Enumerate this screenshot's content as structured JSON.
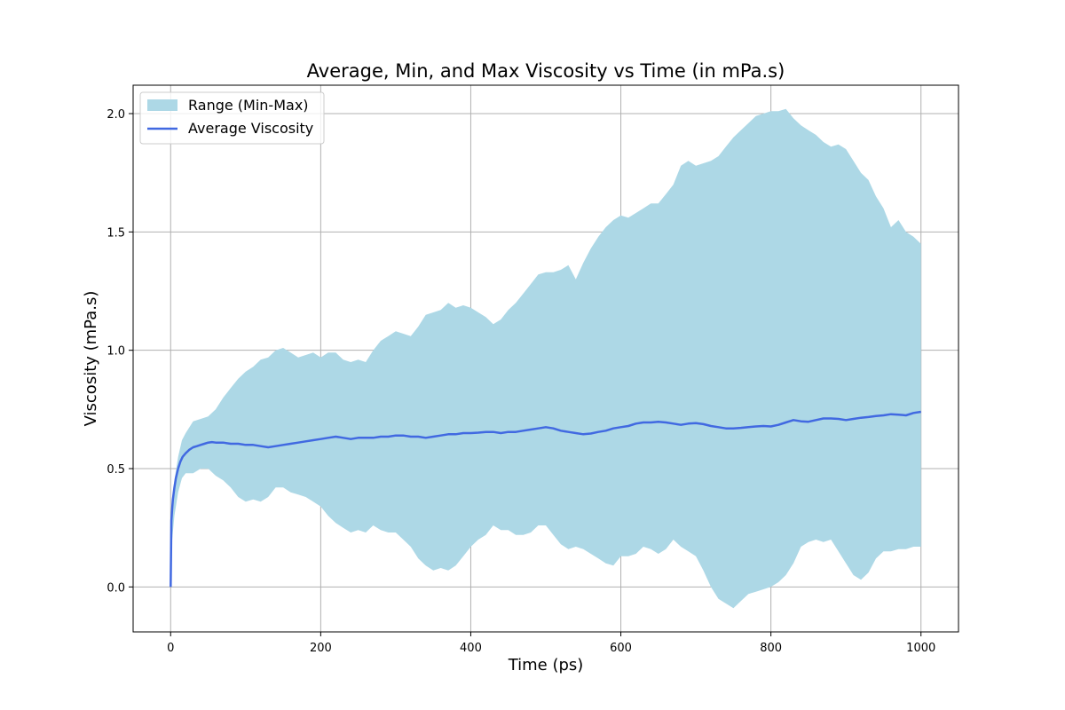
{
  "chart_data": {
    "type": "area",
    "title": "Average, Min, and Max Viscosity vs Time (in mPa.s)",
    "xlabel": "Time (ps)",
    "ylabel": "Viscosity (mPa.s)",
    "xlim": [
      -50,
      1050
    ],
    "ylim": [
      -0.19,
      2.12
    ],
    "xticks": [
      0,
      200,
      400,
      600,
      800,
      1000
    ],
    "xtick_labels": [
      "0",
      "200",
      "400",
      "600",
      "800",
      "1000"
    ],
    "yticks": [
      0.0,
      0.5,
      1.0,
      1.5,
      2.0
    ],
    "ytick_labels": [
      "0.0",
      "0.5",
      "1.0",
      "1.5",
      "2.0"
    ],
    "grid": true,
    "legend_position": "top-left",
    "colors": {
      "range_fill": "#add8e6",
      "average_line": "#4169e1",
      "grid": "#b0b0b0"
    },
    "series": [
      {
        "name": "Range (Min-Max)",
        "kind": "band",
        "x": [
          0,
          2,
          5,
          10,
          15,
          20,
          30,
          40,
          50,
          60,
          70,
          80,
          90,
          100,
          110,
          120,
          130,
          140,
          150,
          160,
          170,
          180,
          190,
          200,
          210,
          220,
          230,
          240,
          250,
          260,
          270,
          280,
          290,
          300,
          310,
          320,
          330,
          340,
          350,
          360,
          370,
          380,
          390,
          400,
          410,
          420,
          430,
          440,
          450,
          460,
          470,
          480,
          490,
          500,
          510,
          520,
          530,
          540,
          550,
          560,
          570,
          580,
          590,
          600,
          610,
          620,
          630,
          640,
          650,
          660,
          670,
          680,
          690,
          700,
          710,
          720,
          730,
          740,
          750,
          760,
          770,
          780,
          790,
          800,
          810,
          820,
          830,
          840,
          850,
          860,
          870,
          880,
          890,
          900,
          910,
          920,
          930,
          940,
          950,
          960,
          970,
          980,
          990,
          1000
        ],
        "min": [
          0.0,
          0.2,
          0.3,
          0.4,
          0.46,
          0.48,
          0.48,
          0.5,
          0.5,
          0.47,
          0.45,
          0.42,
          0.38,
          0.36,
          0.37,
          0.36,
          0.38,
          0.42,
          0.42,
          0.4,
          0.39,
          0.38,
          0.36,
          0.34,
          0.3,
          0.27,
          0.25,
          0.23,
          0.24,
          0.23,
          0.26,
          0.24,
          0.23,
          0.23,
          0.2,
          0.17,
          0.12,
          0.09,
          0.07,
          0.08,
          0.07,
          0.09,
          0.13,
          0.17,
          0.2,
          0.22,
          0.26,
          0.24,
          0.24,
          0.22,
          0.22,
          0.23,
          0.26,
          0.26,
          0.22,
          0.18,
          0.16,
          0.17,
          0.16,
          0.14,
          0.12,
          0.1,
          0.09,
          0.13,
          0.13,
          0.14,
          0.17,
          0.16,
          0.14,
          0.16,
          0.2,
          0.17,
          0.15,
          0.13,
          0.07,
          0.0,
          -0.05,
          -0.07,
          -0.09,
          -0.06,
          -0.03,
          -0.02,
          -0.01,
          0.0,
          0.02,
          0.05,
          0.1,
          0.17,
          0.19,
          0.2,
          0.19,
          0.2,
          0.15,
          0.1,
          0.05,
          0.03,
          0.06,
          0.12,
          0.15,
          0.15,
          0.16,
          0.16,
          0.17,
          0.17
        ],
        "max": [
          0.0,
          0.3,
          0.45,
          0.55,
          0.62,
          0.65,
          0.7,
          0.71,
          0.72,
          0.75,
          0.8,
          0.84,
          0.88,
          0.91,
          0.93,
          0.96,
          0.97,
          1.0,
          1.01,
          0.99,
          0.97,
          0.98,
          0.99,
          0.97,
          0.99,
          0.99,
          0.96,
          0.95,
          0.96,
          0.95,
          1.0,
          1.04,
          1.06,
          1.08,
          1.07,
          1.06,
          1.1,
          1.15,
          1.16,
          1.17,
          1.2,
          1.18,
          1.19,
          1.18,
          1.16,
          1.14,
          1.11,
          1.13,
          1.17,
          1.2,
          1.24,
          1.28,
          1.32,
          1.33,
          1.33,
          1.34,
          1.36,
          1.3,
          1.37,
          1.43,
          1.48,
          1.52,
          1.55,
          1.57,
          1.56,
          1.58,
          1.6,
          1.62,
          1.62,
          1.66,
          1.7,
          1.78,
          1.8,
          1.78,
          1.79,
          1.8,
          1.82,
          1.86,
          1.9,
          1.93,
          1.96,
          1.99,
          2.0,
          2.01,
          2.01,
          2.02,
          1.98,
          1.95,
          1.93,
          1.91,
          1.88,
          1.86,
          1.87,
          1.85,
          1.8,
          1.75,
          1.72,
          1.65,
          1.6,
          1.52,
          1.55,
          1.5,
          1.48,
          1.45
        ]
      },
      {
        "name": "Average Viscosity",
        "kind": "line",
        "x": [
          0,
          1,
          2,
          3,
          5,
          7,
          10,
          13,
          16,
          20,
          25,
          30,
          35,
          40,
          45,
          50,
          55,
          60,
          70,
          80,
          90,
          100,
          110,
          120,
          130,
          140,
          150,
          160,
          170,
          180,
          190,
          200,
          210,
          220,
          230,
          240,
          250,
          260,
          270,
          280,
          290,
          300,
          310,
          320,
          330,
          340,
          350,
          360,
          370,
          380,
          390,
          400,
          410,
          420,
          430,
          440,
          450,
          460,
          470,
          480,
          490,
          500,
          510,
          520,
          530,
          540,
          550,
          560,
          570,
          580,
          590,
          600,
          610,
          620,
          630,
          640,
          650,
          660,
          670,
          680,
          690,
          700,
          710,
          720,
          730,
          740,
          750,
          760,
          770,
          780,
          790,
          800,
          810,
          820,
          830,
          840,
          850,
          860,
          870,
          880,
          890,
          900,
          910,
          920,
          930,
          940,
          950,
          960,
          970,
          980,
          990,
          1000
        ],
        "y": [
          0.0,
          0.28,
          0.33,
          0.37,
          0.42,
          0.46,
          0.5,
          0.53,
          0.55,
          0.565,
          0.58,
          0.59,
          0.595,
          0.6,
          0.605,
          0.61,
          0.612,
          0.61,
          0.61,
          0.605,
          0.605,
          0.6,
          0.6,
          0.595,
          0.59,
          0.595,
          0.6,
          0.605,
          0.61,
          0.615,
          0.62,
          0.625,
          0.63,
          0.635,
          0.63,
          0.625,
          0.63,
          0.63,
          0.63,
          0.635,
          0.635,
          0.64,
          0.64,
          0.635,
          0.635,
          0.63,
          0.635,
          0.64,
          0.645,
          0.645,
          0.65,
          0.65,
          0.652,
          0.655,
          0.655,
          0.65,
          0.655,
          0.655,
          0.66,
          0.665,
          0.67,
          0.675,
          0.67,
          0.66,
          0.655,
          0.65,
          0.645,
          0.648,
          0.655,
          0.66,
          0.67,
          0.675,
          0.68,
          0.69,
          0.695,
          0.695,
          0.698,
          0.695,
          0.69,
          0.685,
          0.69,
          0.692,
          0.688,
          0.68,
          0.675,
          0.67,
          0.67,
          0.672,
          0.675,
          0.678,
          0.68,
          0.678,
          0.685,
          0.695,
          0.705,
          0.7,
          0.698,
          0.705,
          0.712,
          0.712,
          0.71,
          0.705,
          0.71,
          0.715,
          0.718,
          0.722,
          0.725,
          0.73,
          0.728,
          0.725,
          0.735,
          0.74
        ]
      }
    ]
  }
}
